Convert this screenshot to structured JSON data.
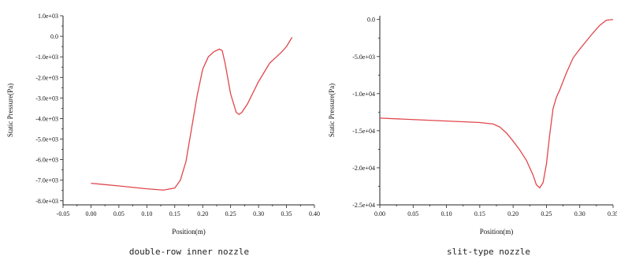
{
  "chart_data": [
    {
      "type": "line",
      "caption": "double-row inner nozzle",
      "xlabel": "Position(m)",
      "ylabel": "Static Pressure(Pa)",
      "xlim": [
        -0.05,
        0.4
      ],
      "ylim": [
        -8200,
        1000
      ],
      "x_ticks": [
        -0.05,
        0.0,
        0.05,
        0.1,
        0.15,
        0.2,
        0.25,
        0.3,
        0.35,
        0.4
      ],
      "x_tick_labels": [
        "-0.05",
        "0.00",
        "0.05",
        "0.10",
        "0.15",
        "0.20",
        "0.25",
        "0.30",
        "0.35",
        "0.40"
      ],
      "y_ticks": [
        1000,
        0,
        -1000,
        -2000,
        -3000,
        -4000,
        -5000,
        -6000,
        -7000,
        -8000
      ],
      "y_tick_labels": [
        "1.0e+03",
        "0.0",
        "-1.0e+03",
        "-2.0e+03",
        "-3.0e+03",
        "-4.0e+03",
        "-5.0e+03",
        "-6.0e+03",
        "-7.0e+03",
        "-8.0e+03"
      ],
      "grid": false,
      "series": [
        {
          "color": "#e0474c",
          "x": [
            0.0,
            0.05,
            0.1,
            0.13,
            0.15,
            0.16,
            0.17,
            0.18,
            0.19,
            0.2,
            0.21,
            0.22,
            0.23,
            0.235,
            0.24,
            0.25,
            0.26,
            0.265,
            0.27,
            0.28,
            0.3,
            0.32,
            0.34,
            0.35,
            0.36
          ],
          "y": [
            -7150,
            -7280,
            -7420,
            -7480,
            -7380,
            -7000,
            -6100,
            -4500,
            -2900,
            -1600,
            -1000,
            -750,
            -620,
            -700,
            -1300,
            -2800,
            -3700,
            -3800,
            -3700,
            -3300,
            -2200,
            -1300,
            -800,
            -500,
            -50
          ]
        }
      ]
    },
    {
      "type": "line",
      "caption": "slit-type nozzle",
      "xlabel": "Position(m)",
      "ylabel": "Static Pressure(Pa)",
      "xlim": [
        0.0,
        0.35
      ],
      "ylim": [
        -25000,
        500
      ],
      "x_ticks": [
        0.0,
        0.05,
        0.1,
        0.15,
        0.2,
        0.25,
        0.3,
        0.35
      ],
      "x_tick_labels": [
        "0.00",
        "0.05",
        "0.10",
        "0.15",
        "0.20",
        "0.25",
        "0.30",
        "0.35"
      ],
      "y_ticks": [
        0,
        -5000,
        -10000,
        -15000,
        -20000,
        -25000
      ],
      "y_tick_labels": [
        "0.0",
        "-5.0e+03",
        "-1.0e+04",
        "-1.5e+04",
        "-2.0e+04",
        "-2.5e+04"
      ],
      "grid": false,
      "series": [
        {
          "color": "#e0474c",
          "x": [
            0.0,
            0.05,
            0.1,
            0.15,
            0.17,
            0.18,
            0.19,
            0.2,
            0.21,
            0.22,
            0.23,
            0.235,
            0.24,
            0.245,
            0.25,
            0.255,
            0.26,
            0.265,
            0.27,
            0.28,
            0.29,
            0.3,
            0.31,
            0.32,
            0.33,
            0.34,
            0.35
          ],
          "y": [
            -13300,
            -13500,
            -13700,
            -13900,
            -14100,
            -14500,
            -15300,
            -16400,
            -17600,
            -19000,
            -21000,
            -22300,
            -22700,
            -22000,
            -19500,
            -15500,
            -12000,
            -10500,
            -9500,
            -7200,
            -5200,
            -4000,
            -2900,
            -1800,
            -800,
            -100,
            0
          ]
        }
      ]
    }
  ]
}
